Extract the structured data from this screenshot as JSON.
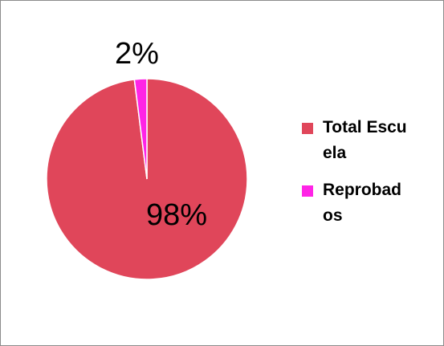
{
  "chart_data": {
    "type": "pie",
    "categories": [
      "Total Escuela",
      "Reprobados"
    ],
    "values": [
      98,
      2
    ],
    "data_labels": [
      "98%",
      "2%"
    ],
    "colors": [
      "#e0465a",
      "#ff24e6"
    ],
    "legend_position": "right"
  }
}
